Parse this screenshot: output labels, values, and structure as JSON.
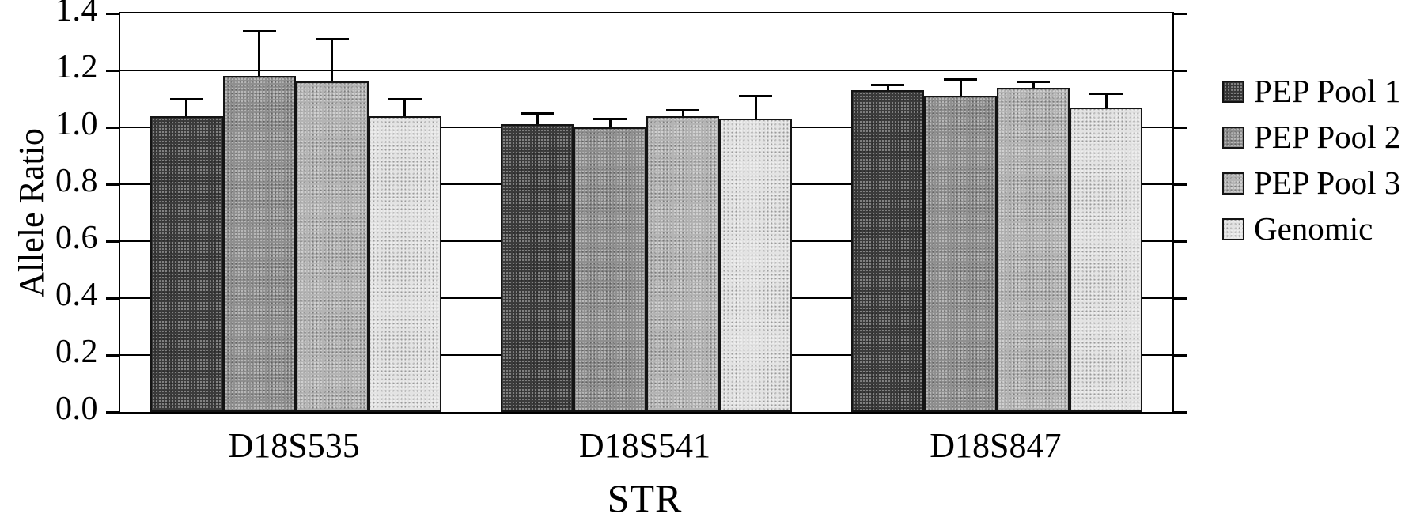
{
  "chart_data": {
    "type": "bar",
    "title": "",
    "xlabel": "STR",
    "ylabel": "Allele Ratio",
    "ylim": [
      0,
      1.4
    ],
    "ytick_step": 0.2,
    "grid": true,
    "legend_position": "right",
    "axis_color": "#000000",
    "categories": [
      "D18S535",
      "D18S541",
      "D18S847"
    ],
    "series": [
      {
        "name": "PEP Pool 1",
        "color": "#3b3b3b",
        "values": [
          1.04,
          1.01,
          1.13
        ],
        "errors_upper": [
          0.06,
          0.04,
          0.02
        ]
      },
      {
        "name": "PEP Pool 2",
        "color": "#8f8f8f",
        "values": [
          1.18,
          1.0,
          1.11
        ],
        "errors_upper": [
          0.16,
          0.03,
          0.06
        ]
      },
      {
        "name": "PEP Pool 3",
        "color": "#b4b4b4",
        "values": [
          1.16,
          1.04,
          1.14
        ],
        "errors_upper": [
          0.15,
          0.02,
          0.02
        ]
      },
      {
        "name": "Genomic",
        "color": "#e3e3e3",
        "values": [
          1.04,
          1.03,
          1.07
        ],
        "errors_upper": [
          0.06,
          0.08,
          0.05
        ]
      }
    ]
  }
}
